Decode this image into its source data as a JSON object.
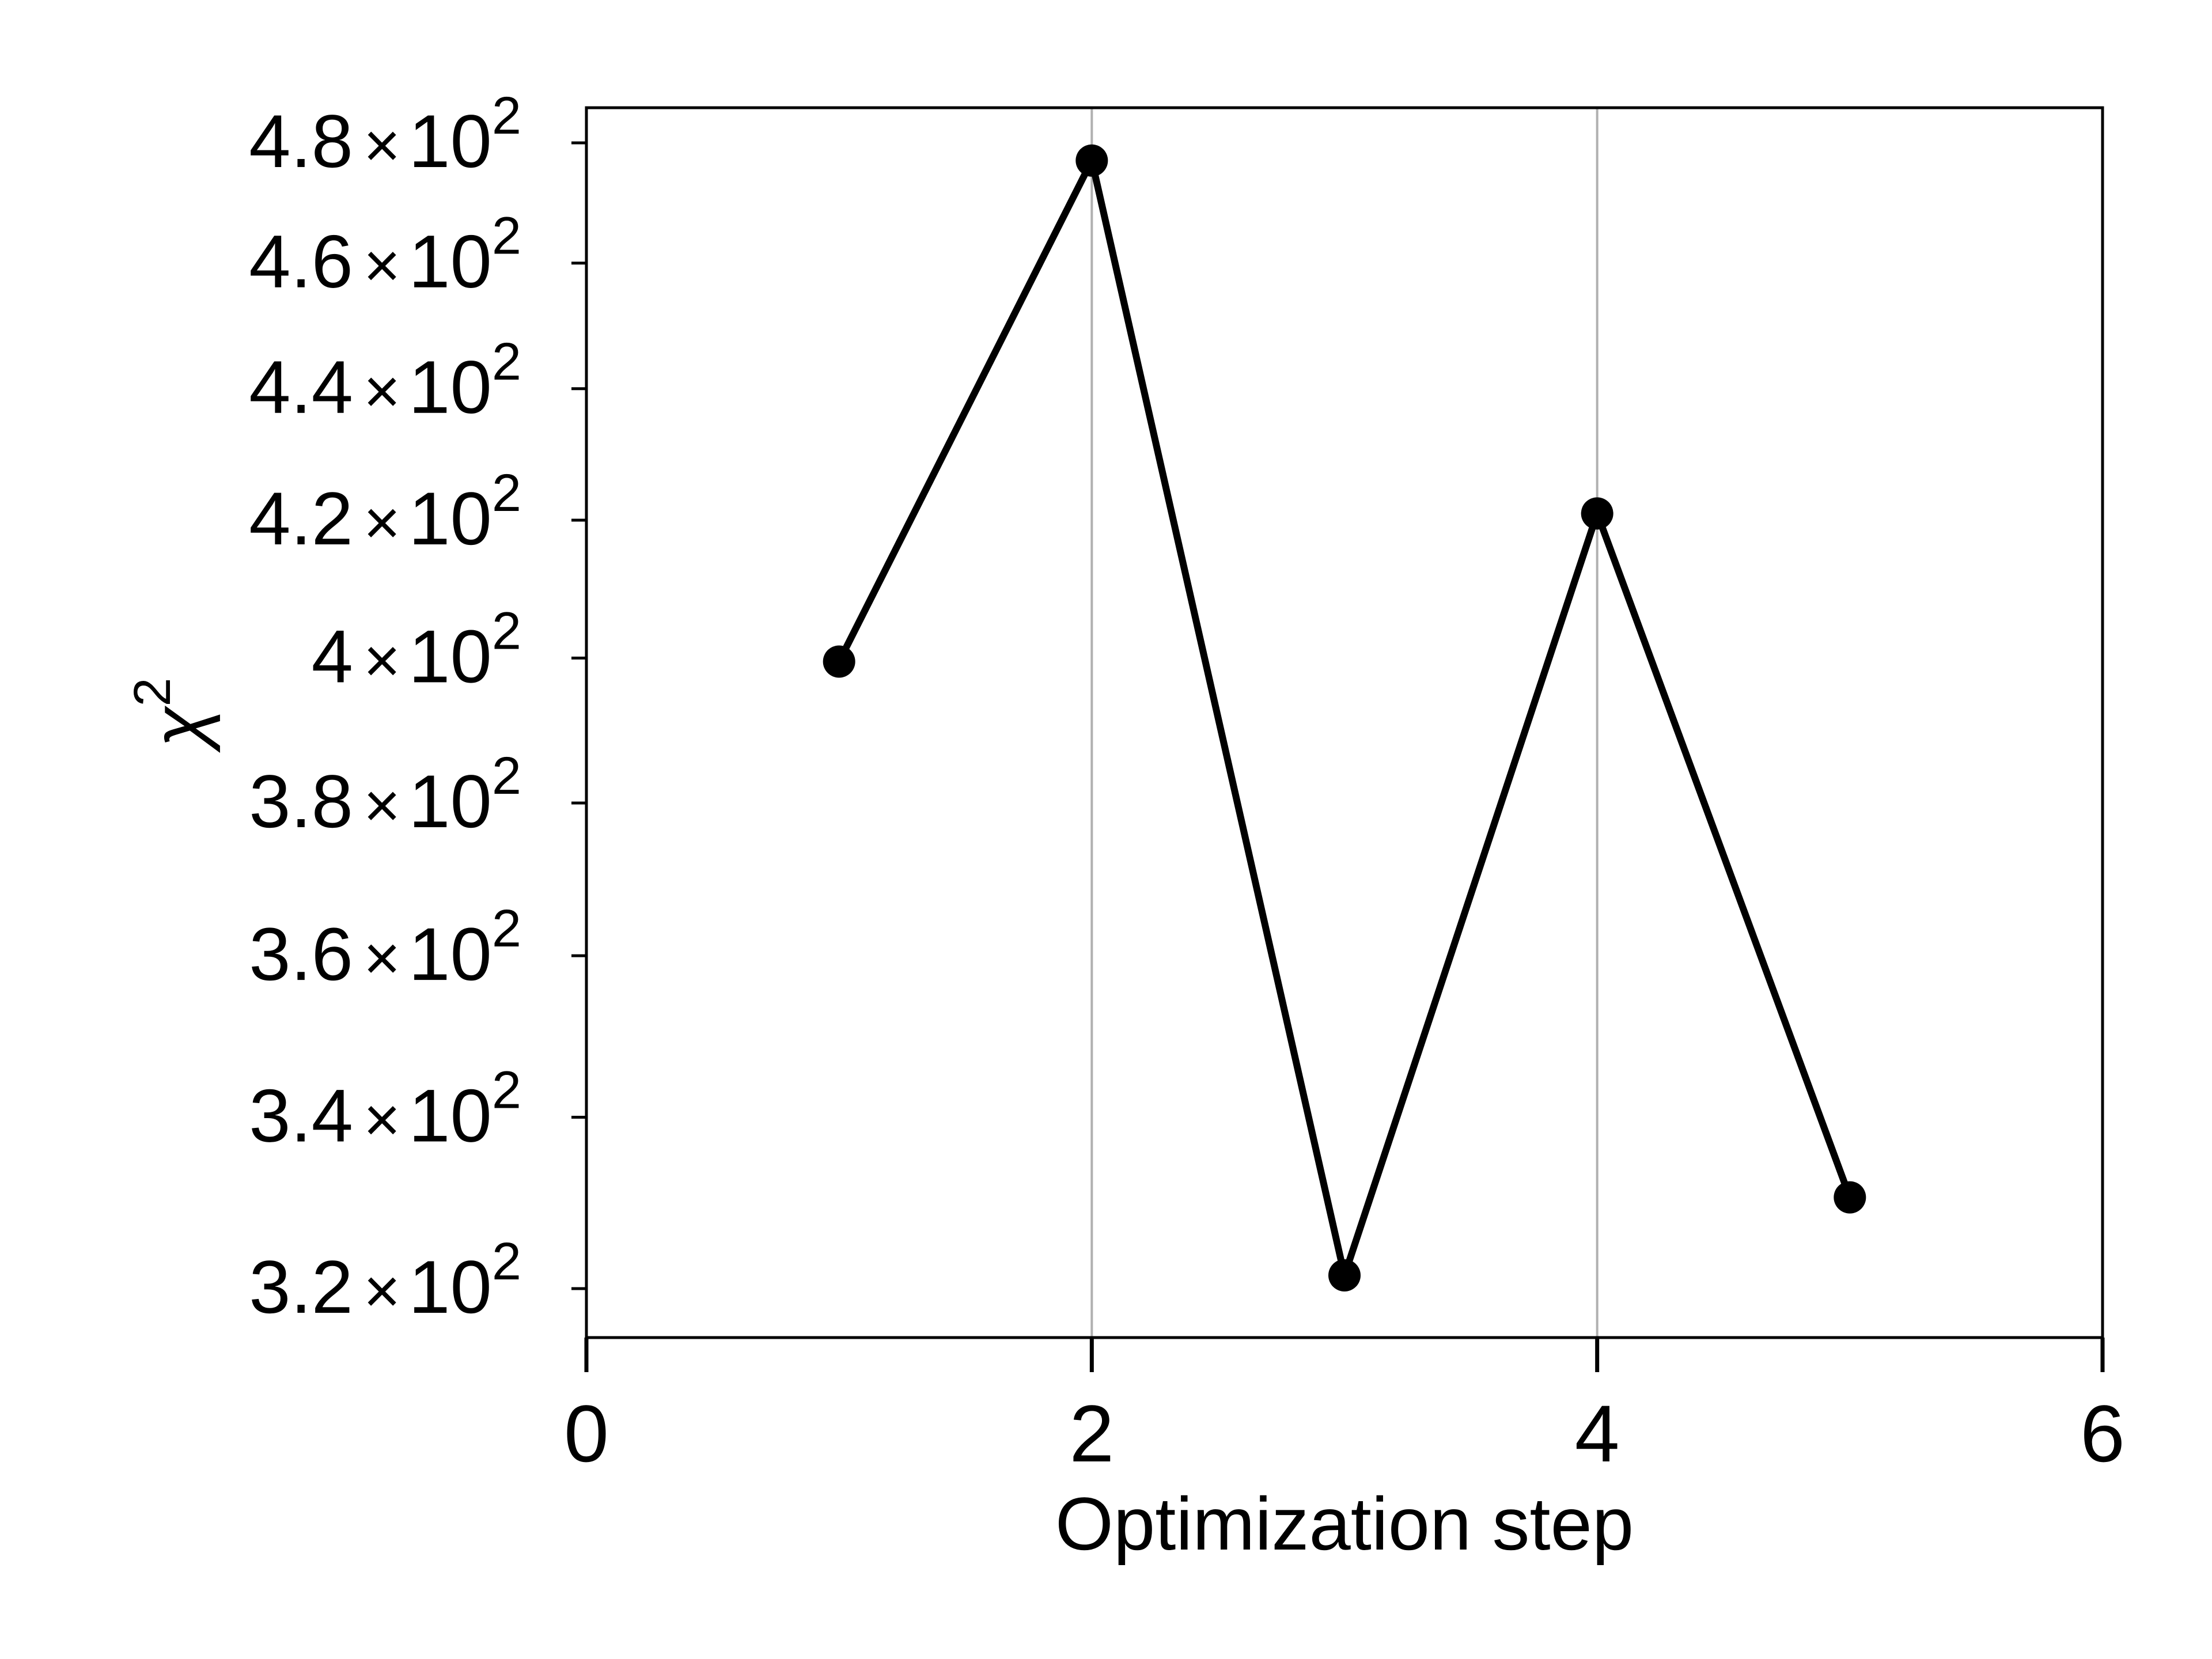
{
  "chart_data": {
    "type": "line",
    "xlabel": "Optimization step",
    "ylabel": "χ",
    "ylabel_superscript": "2",
    "xlim": [
      0,
      6
    ],
    "ylim": [
      314.5,
      486
    ],
    "yscale": "log",
    "x_ticks": [
      0,
      2,
      4,
      6
    ],
    "x_tick_labels": [
      "0",
      "2",
      "4",
      "6"
    ],
    "y_ticks": [
      320,
      340,
      360,
      380,
      400,
      420,
      440,
      460,
      480
    ],
    "y_tick_labels": [
      {
        "mantissa": "3.2",
        "times": "×",
        "base": "10",
        "exponent": "2"
      },
      {
        "mantissa": "3.4",
        "times": "×",
        "base": "10",
        "exponent": "2"
      },
      {
        "mantissa": "3.6",
        "times": "×",
        "base": "10",
        "exponent": "2"
      },
      {
        "mantissa": "3.8",
        "times": "×",
        "base": "10",
        "exponent": "2"
      },
      {
        "mantissa": "4",
        "times": "×",
        "base": "10",
        "exponent": "2"
      },
      {
        "mantissa": "4.2",
        "times": "×",
        "base": "10",
        "exponent": "2"
      },
      {
        "mantissa": "4.4",
        "times": "×",
        "base": "10",
        "exponent": "2"
      },
      {
        "mantissa": "4.6",
        "times": "×",
        "base": "10",
        "exponent": "2"
      },
      {
        "mantissa": "4.8",
        "times": "×",
        "base": "10",
        "exponent": "2"
      }
    ],
    "grid": "x-major",
    "series": [
      {
        "x": [
          1,
          2,
          3,
          4,
          5
        ],
        "y": [
          399.5,
          477.0,
          321.5,
          421.0,
          330.5
        ],
        "color": "#000000",
        "marker": "circle"
      }
    ]
  }
}
